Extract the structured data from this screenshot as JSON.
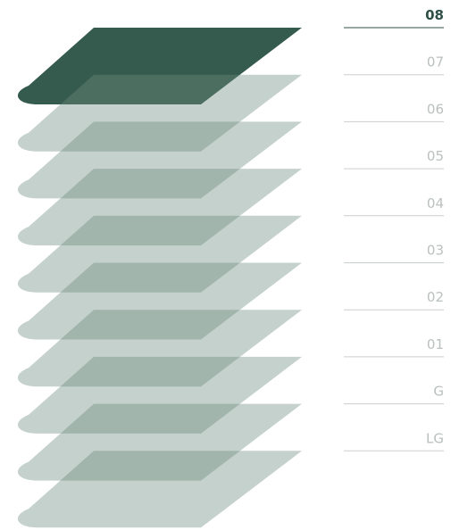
{
  "floors": [
    {
      "label": "08",
      "active": true
    },
    {
      "label": "07",
      "active": false
    },
    {
      "label": "06",
      "active": false
    },
    {
      "label": "05",
      "active": false
    },
    {
      "label": "04",
      "active": false
    },
    {
      "label": "03",
      "active": false
    },
    {
      "label": "02",
      "active": false
    },
    {
      "label": "01",
      "active": false
    },
    {
      "label": "G",
      "active": false
    },
    {
      "label": "LG",
      "active": false
    }
  ]
}
